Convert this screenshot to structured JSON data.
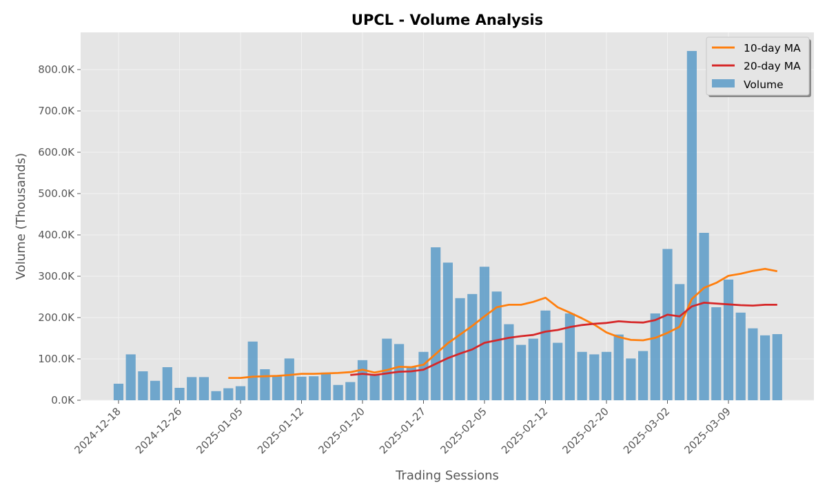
{
  "chart_data": {
    "type": "bar",
    "title": "UPCL - Volume Analysis",
    "xlabel": "Trading Sessions",
    "ylabel": "Volume (Thousands)",
    "ylim": [
      0,
      890000
    ],
    "yticks": [
      0,
      100000,
      200000,
      300000,
      400000,
      500000,
      600000,
      700000,
      800000
    ],
    "ytick_labels": [
      "0.0K",
      "100.0K",
      "200.0K",
      "300.0K",
      "400.0K",
      "500.0K",
      "600.0K",
      "700.0K",
      "800.0K"
    ],
    "xtick_labels": [
      "2024-12-18",
      "2024-12-26",
      "2025-01-05",
      "2025-01-12",
      "2025-01-20",
      "2025-01-27",
      "2025-02-05",
      "2025-02-12",
      "2025-02-20",
      "2025-03-02",
      "2025-03-09"
    ],
    "xtick_positions": [
      0,
      5,
      10,
      15,
      20,
      25,
      30,
      35,
      40,
      45,
      50
    ],
    "grid": true,
    "legend_position": "top-right",
    "legend": [
      "10-day MA",
      "20-day MA",
      "Volume"
    ],
    "series": [
      {
        "name": "Volume",
        "kind": "bar",
        "color": "#5b9bc8",
        "values": [
          40000,
          111000,
          70000,
          47000,
          80000,
          30000,
          56000,
          56000,
          22000,
          29000,
          34000,
          142000,
          75000,
          60000,
          101000,
          57000,
          58000,
          67000,
          37000,
          44000,
          97000,
          60000,
          149000,
          136000,
          80000,
          117000,
          370000,
          333000,
          247000,
          257000,
          323000,
          263000,
          184000,
          134000,
          149000,
          217000,
          139000,
          210000,
          117000,
          111000,
          117000,
          159000,
          101000,
          119000,
          210000,
          366000,
          281000,
          845000,
          405000,
          225000,
          292000,
          212000,
          174000,
          157000,
          160000
        ]
      },
      {
        "name": "10-day MA",
        "kind": "line",
        "color": "#ff7f0e",
        "start_index": 9,
        "values": [
          54000,
          54000,
          57000,
          58000,
          59000,
          61000,
          64000,
          64000,
          65000,
          66000,
          68000,
          74000,
          67000,
          73000,
          81000,
          80000,
          86000,
          112000,
          138000,
          159000,
          180000,
          203000,
          225000,
          231000,
          231000,
          238000,
          248000,
          225000,
          212000,
          198000,
          183000,
          164000,
          153000,
          146000,
          145000,
          151000,
          163000,
          178000,
          245000,
          272000,
          284000,
          301000,
          306000,
          313000,
          318000,
          312000
        ]
      },
      {
        "name": "20-day MA",
        "kind": "line",
        "color": "#d62728",
        "start_index": 19,
        "values": [
          61000,
          64000,
          61000,
          65000,
          69000,
          70000,
          74000,
          88000,
          102000,
          113000,
          123000,
          139000,
          145000,
          151000,
          155000,
          158000,
          166000,
          170000,
          177000,
          182000,
          185000,
          187000,
          191000,
          189000,
          188000,
          194000,
          207000,
          203000,
          227000,
          236000,
          234000,
          232000,
          230000,
          229000,
          231000,
          231000
        ]
      }
    ]
  }
}
